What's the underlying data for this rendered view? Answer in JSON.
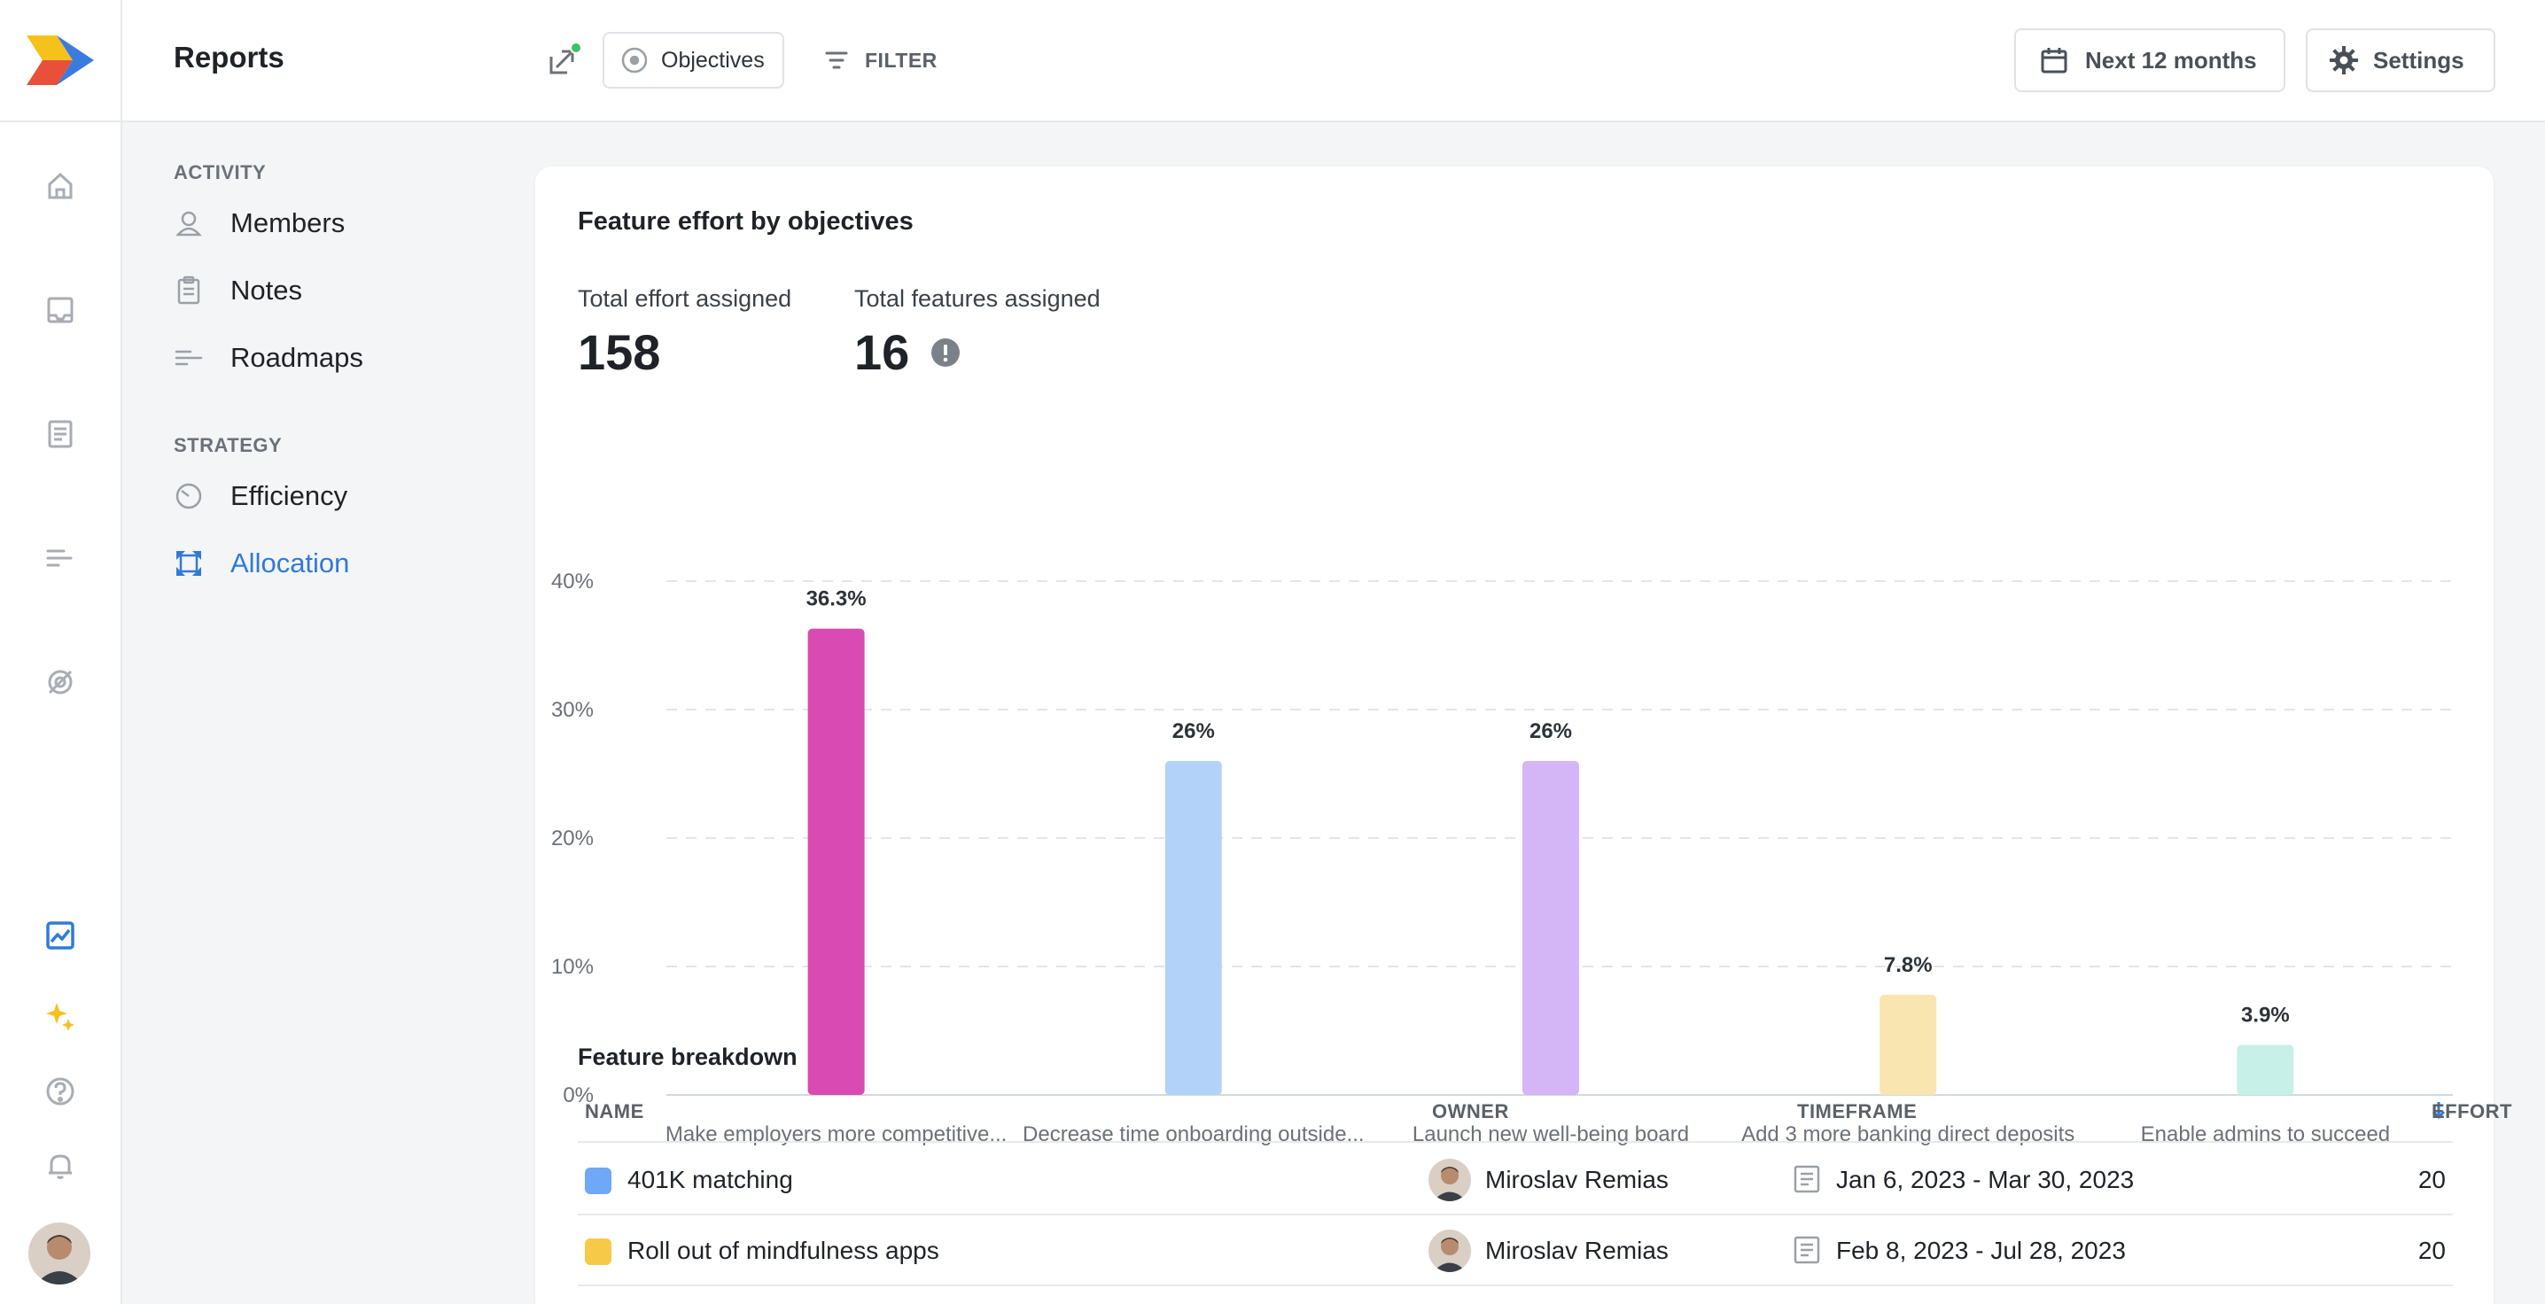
{
  "app": {
    "page_title": "Reports",
    "brand_colors": {
      "accent": "#2f7ad9",
      "logo_yellow": "#f5c21b",
      "logo_red": "#e8503a",
      "logo_blue": "#3a7be0"
    }
  },
  "rail": {
    "icons": [
      "home-icon",
      "inbox-icon",
      "notes-icon",
      "roadmap-icon",
      "objectives-icon",
      "reports-icon",
      "sparkle-icon",
      "help-icon",
      "bell-icon"
    ]
  },
  "header": {
    "objectives_label": "Objectives",
    "filter_label": "FILTER",
    "range_label": "Next 12 months",
    "settings_label": "Settings"
  },
  "sidebar": {
    "sections": [
      {
        "label": "ACTIVITY",
        "items": [
          {
            "label": "Members",
            "icon": "member-icon"
          },
          {
            "label": "Notes",
            "icon": "clipboard-icon"
          },
          {
            "label": "Roadmaps",
            "icon": "roadmap-icon"
          }
        ]
      },
      {
        "label": "STRATEGY",
        "items": [
          {
            "label": "Efficiency",
            "icon": "gauge-icon"
          },
          {
            "label": "Allocation",
            "icon": "allocation-icon",
            "active": true
          }
        ]
      }
    ]
  },
  "card": {
    "title": "Feature effort by objectives",
    "metrics": [
      {
        "label": "Total effort assigned",
        "value": "158"
      },
      {
        "label": "Total features assigned",
        "value": "16"
      }
    ]
  },
  "chart_data": {
    "type": "bar",
    "categories": [
      "Make employers more competitive...",
      "Decrease time onboarding outside...",
      "Launch new well-being board",
      "Add 3 more banking direct deposits",
      "Enable admins to succeed"
    ],
    "values": [
      36.3,
      26,
      26,
      7.8,
      3.9
    ],
    "data_labels": [
      "36.3%",
      "26%",
      "26%",
      "7.8%",
      "3.9%"
    ],
    "colors": [
      "#d94bb3",
      "#b3d2fa",
      "#d4b5f5",
      "#f9e5b0",
      "#c7f0e8"
    ],
    "y_ticks": [
      "0%",
      "10%",
      "20%",
      "30%",
      "40%"
    ],
    "ylim": [
      0,
      40
    ],
    "grid": true
  },
  "breakdown": {
    "title": "Feature breakdown",
    "columns": {
      "name": "NAME",
      "owner": "OWNER",
      "timeframe": "TIMEFRAME",
      "effort": "EFFORT"
    },
    "rows": [
      {
        "name": "401K matching",
        "color": "#6ea8f7",
        "owner": "Miroslav Remias",
        "timeframe": "Jan 6, 2023 - Mar 30, 2023",
        "effort": "20"
      },
      {
        "name": "Roll out of mindfulness apps",
        "color": "#f7c948",
        "owner": "Miroslav Remias",
        "timeframe": "Feb 8, 2023 - Jul 28, 2023",
        "effort": "20"
      }
    ]
  }
}
